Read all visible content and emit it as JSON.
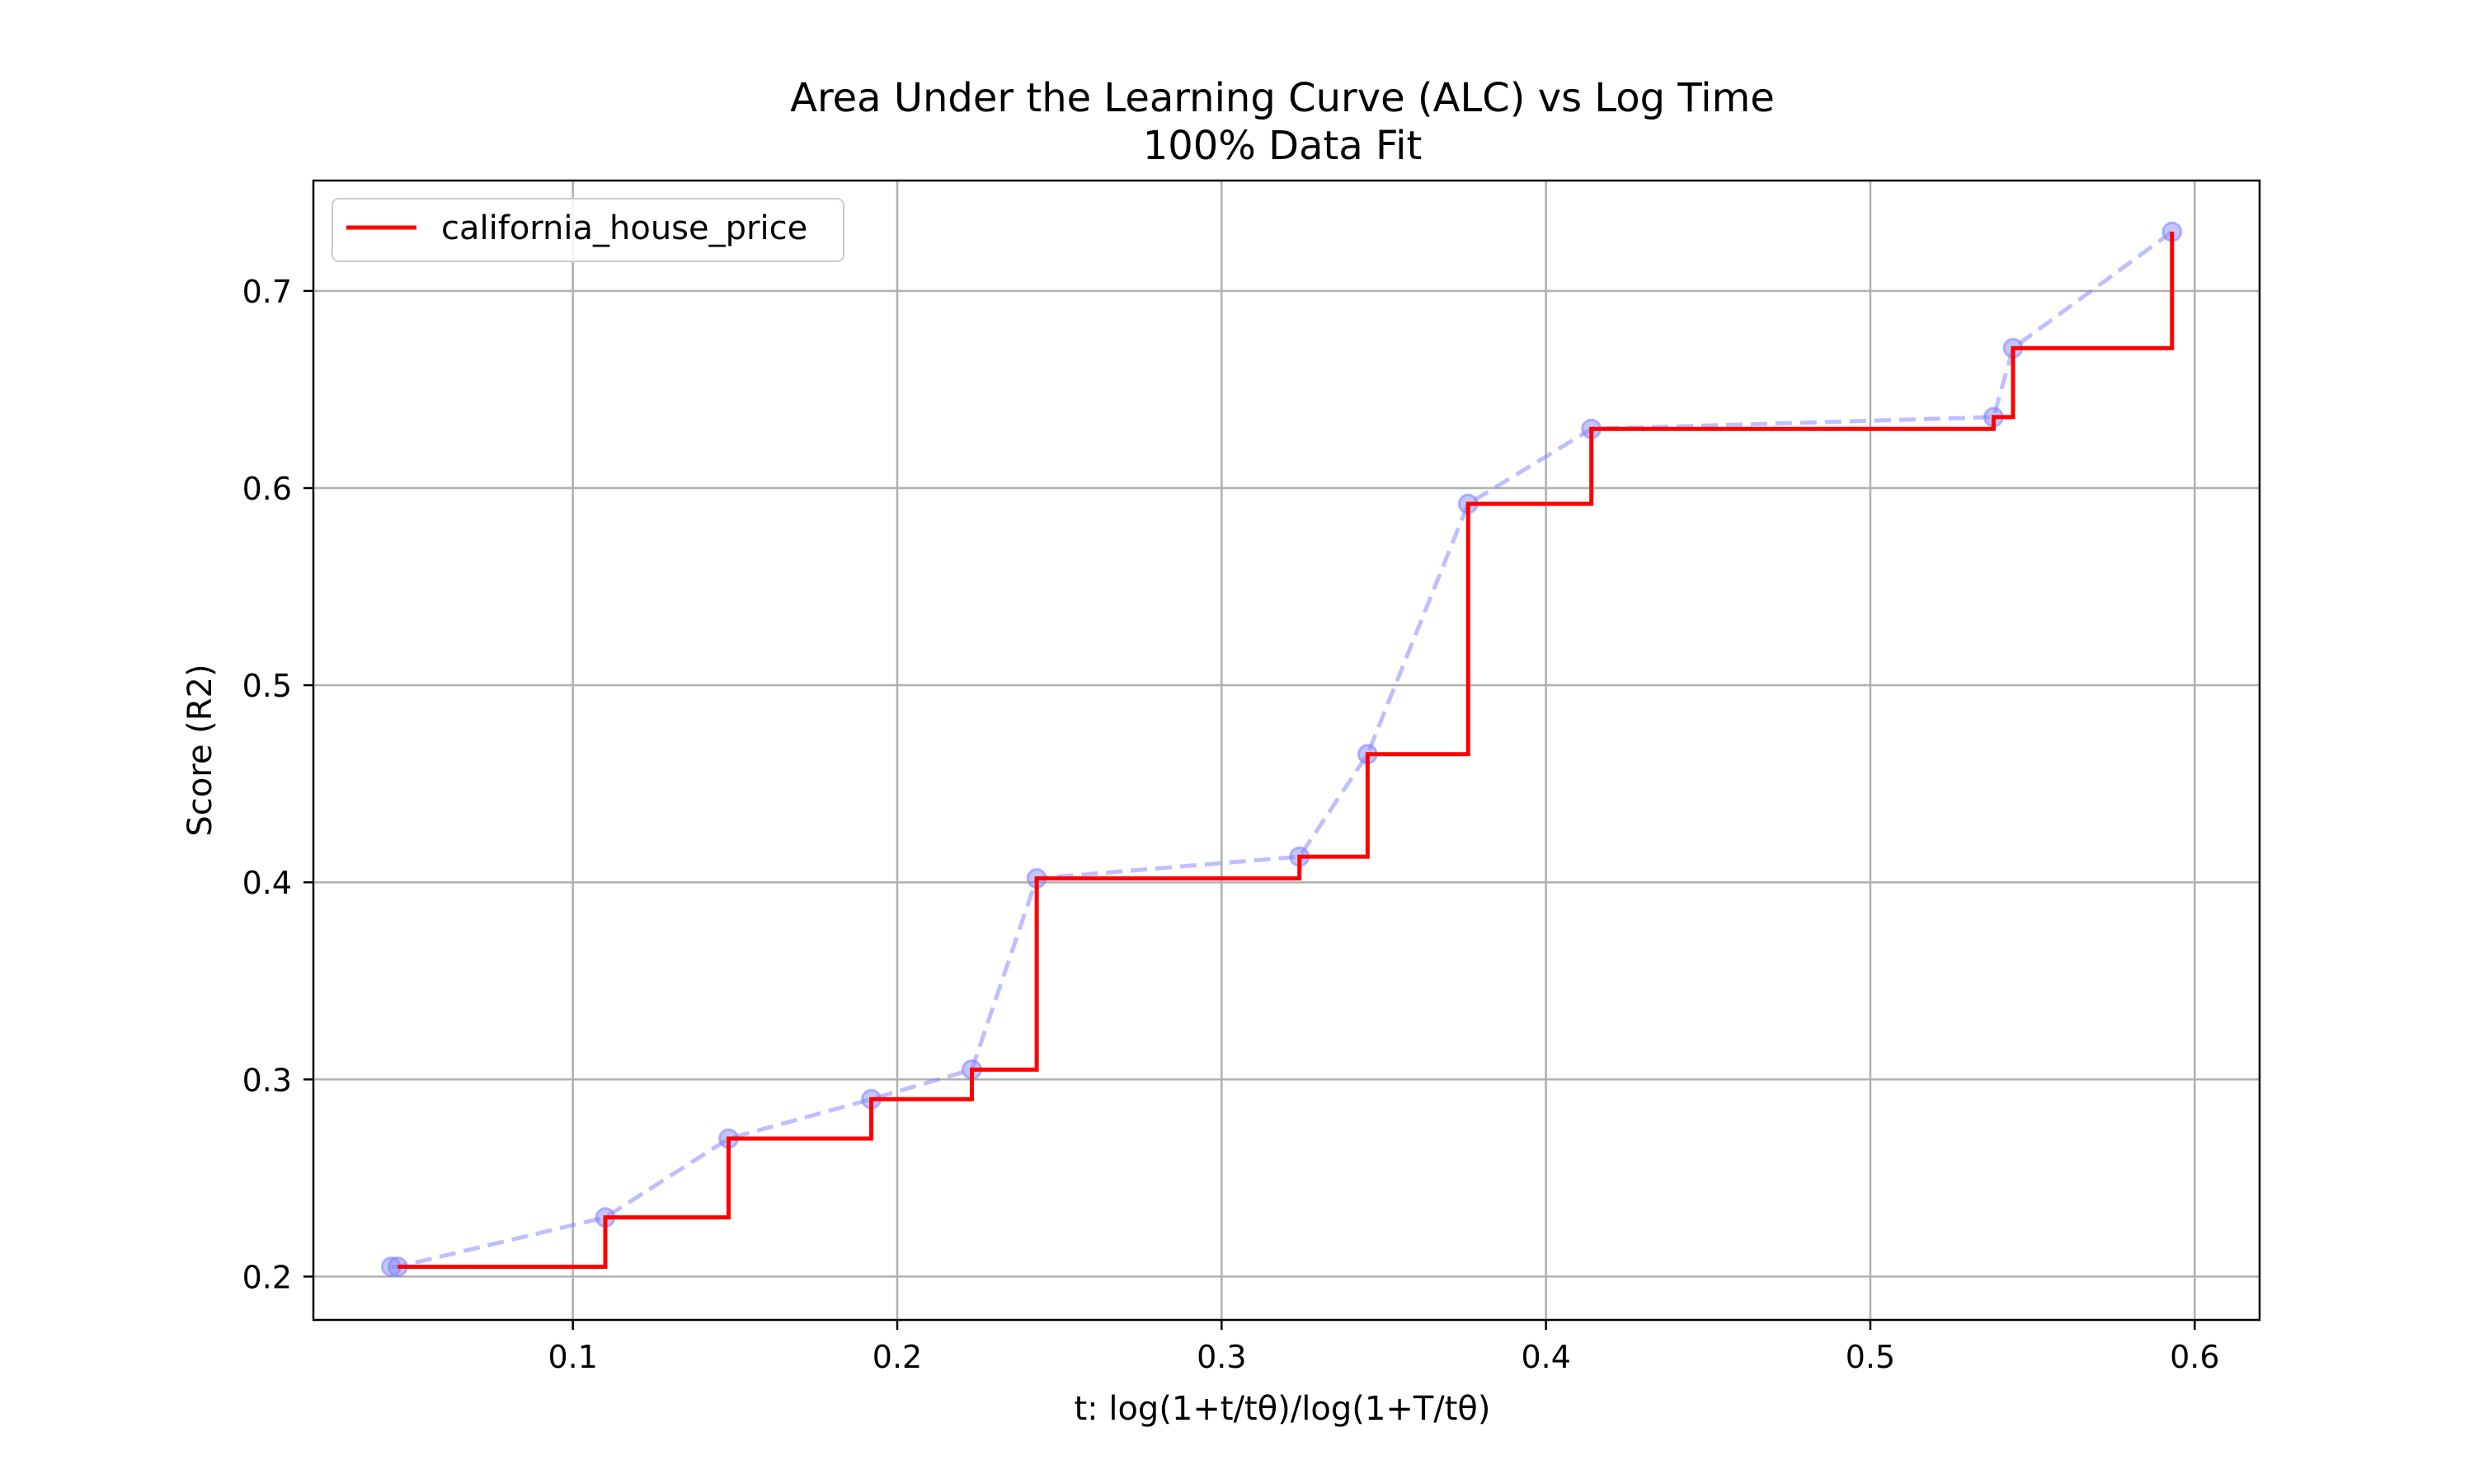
{
  "chart_data": {
    "type": "line",
    "title": "Area Under the Learning Curve (ALC) vs Log Time",
    "subtitle": "100% Data Fit",
    "xlabel": "t: log(1+t/tθ)/log(1+T/tθ)",
    "ylabel": "Score (R2)",
    "xlim": [
      0.02,
      0.62
    ],
    "ylim": [
      0.178,
      0.756
    ],
    "xticks": [
      0.1,
      0.2,
      0.3,
      0.4,
      0.5,
      0.6
    ],
    "yticks": [
      0.2,
      0.3,
      0.4,
      0.5,
      0.6,
      0.7
    ],
    "grid": true,
    "legend_position": "top-left",
    "series": [
      {
        "name": "california_house_price",
        "style": "step-post",
        "color": "#ff0000",
        "x": [
          0.046,
          0.11,
          0.148,
          0.192,
          0.223,
          0.243,
          0.324,
          0.345,
          0.376,
          0.414,
          0.538,
          0.544,
          0.593
        ],
        "y": [
          0.205,
          0.23,
          0.27,
          0.29,
          0.305,
          0.402,
          0.413,
          0.465,
          0.592,
          0.63,
          0.636,
          0.671,
          0.73
        ]
      },
      {
        "name": "",
        "style": "dashed-markers",
        "color": "#8080ff",
        "x": [
          0.044,
          0.046,
          0.11,
          0.148,
          0.192,
          0.223,
          0.243,
          0.324,
          0.345,
          0.376,
          0.414,
          0.538,
          0.544,
          0.593
        ],
        "y": [
          0.205,
          0.205,
          0.23,
          0.27,
          0.29,
          0.305,
          0.402,
          0.413,
          0.465,
          0.592,
          0.63,
          0.636,
          0.671,
          0.73
        ]
      }
    ]
  }
}
